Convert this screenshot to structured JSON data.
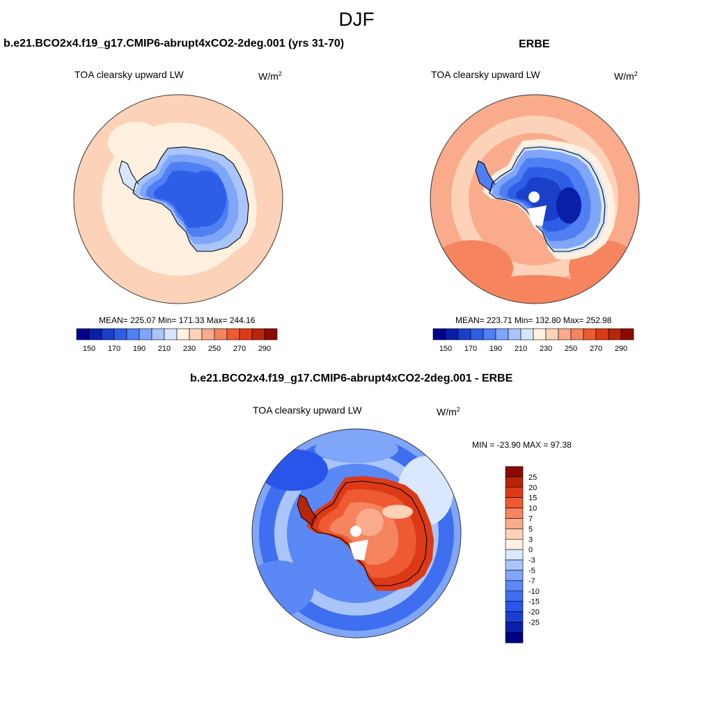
{
  "header": {
    "title": "DJF"
  },
  "colors": {
    "abs": [
      "#00008b",
      "#0a1fa8",
      "#1a3fc9",
      "#2e5ee6",
      "#4f7ff2",
      "#7fa6f8",
      "#aac5fa",
      "#d6e6fc",
      "#fff0e0",
      "#fcd3b8",
      "#f9ab8c",
      "#f5845f",
      "#ee5a32",
      "#dc3a16",
      "#b82508",
      "#8b0a00"
    ],
    "diff": [
      "#000080",
      "#0a1fa8",
      "#1a3fd0",
      "#2a55ea",
      "#3f6ff0",
      "#5a88f5",
      "#7fa6f8",
      "#aac5fa",
      "#d9e8fc",
      "#fff0e2",
      "#fdd2b6",
      "#f9ab8c",
      "#f5845f",
      "#ee5a32",
      "#dc3a16",
      "#b82508",
      "#8b0a00"
    ]
  },
  "panels": [
    {
      "title": "b.e21.BCO2x4.f19_g17.CMIP6-abrupt4xCO2-2deg.001 (yrs 31-70)",
      "variable": "TOA clearsky upward LW",
      "units": "W/m",
      "units_sup": "2",
      "stats": "MEAN= 225.07  Min= 171.33  Max= 244.16"
    },
    {
      "title": "ERBE",
      "variable": "TOA clearsky upward LW",
      "units": "W/m",
      "units_sup": "2",
      "stats": "MEAN= 223.71  Min= 132.80  Max= 252.98"
    },
    {
      "title": "b.e21.BCO2x4.f19_g17.CMIP6-abrupt4xCO2-2deg.001 - ERBE",
      "variable": "TOA clearsky upward LW",
      "units": "W/m",
      "units_sup": "2",
      "stats": "MIN = -23.90 MAX =  97.38"
    }
  ],
  "chart_data": [
    {
      "type": "heatmap",
      "title": "b.e21.BCO2x4.f19_g17.CMIP6-abrupt4xCO2-2deg.001 (yrs 31-70)",
      "subtitle": "TOA clearsky upward LW",
      "units": "W/m2",
      "projection": "south polar stereographic",
      "mean": 225.07,
      "min": 171.33,
      "max": 244.16,
      "colorbar_levels": [
        150,
        160,
        170,
        180,
        190,
        200,
        210,
        220,
        230,
        240,
        250,
        260,
        270,
        280,
        290
      ],
      "colorbar_tick_labels": [
        "150",
        "170",
        "190",
        "210",
        "230",
        "250",
        "270",
        "290"
      ],
      "colorbar_orientation": "horizontal"
    },
    {
      "type": "heatmap",
      "title": "ERBE",
      "subtitle": "TOA clearsky upward LW",
      "units": "W/m2",
      "projection": "south polar stereographic",
      "mean": 223.71,
      "min": 132.8,
      "max": 252.98,
      "colorbar_levels": [
        150,
        160,
        170,
        180,
        190,
        200,
        210,
        220,
        230,
        240,
        250,
        260,
        270,
        280,
        290
      ],
      "colorbar_tick_labels": [
        "150",
        "170",
        "190",
        "210",
        "230",
        "250",
        "270",
        "290"
      ],
      "colorbar_orientation": "horizontal"
    },
    {
      "type": "heatmap",
      "title": "b.e21.BCO2x4.f19_g17.CMIP6-abrupt4xCO2-2deg.001 - ERBE",
      "subtitle": "TOA clearsky upward LW",
      "units": "W/m2",
      "projection": "south polar stereographic",
      "min": -23.9,
      "max": 97.38,
      "colorbar_levels": [
        -25,
        -20,
        -15,
        -10,
        -7,
        -5,
        -3,
        0,
        3,
        5,
        7,
        10,
        15,
        20,
        25
      ],
      "colorbar_tick_labels": [
        "25",
        "20",
        "15",
        "10",
        "7",
        "5",
        "3",
        "0",
        "-3",
        "-5",
        "-7",
        "-10",
        "-15",
        "-20",
        "-25"
      ],
      "colorbar_orientation": "vertical"
    }
  ]
}
